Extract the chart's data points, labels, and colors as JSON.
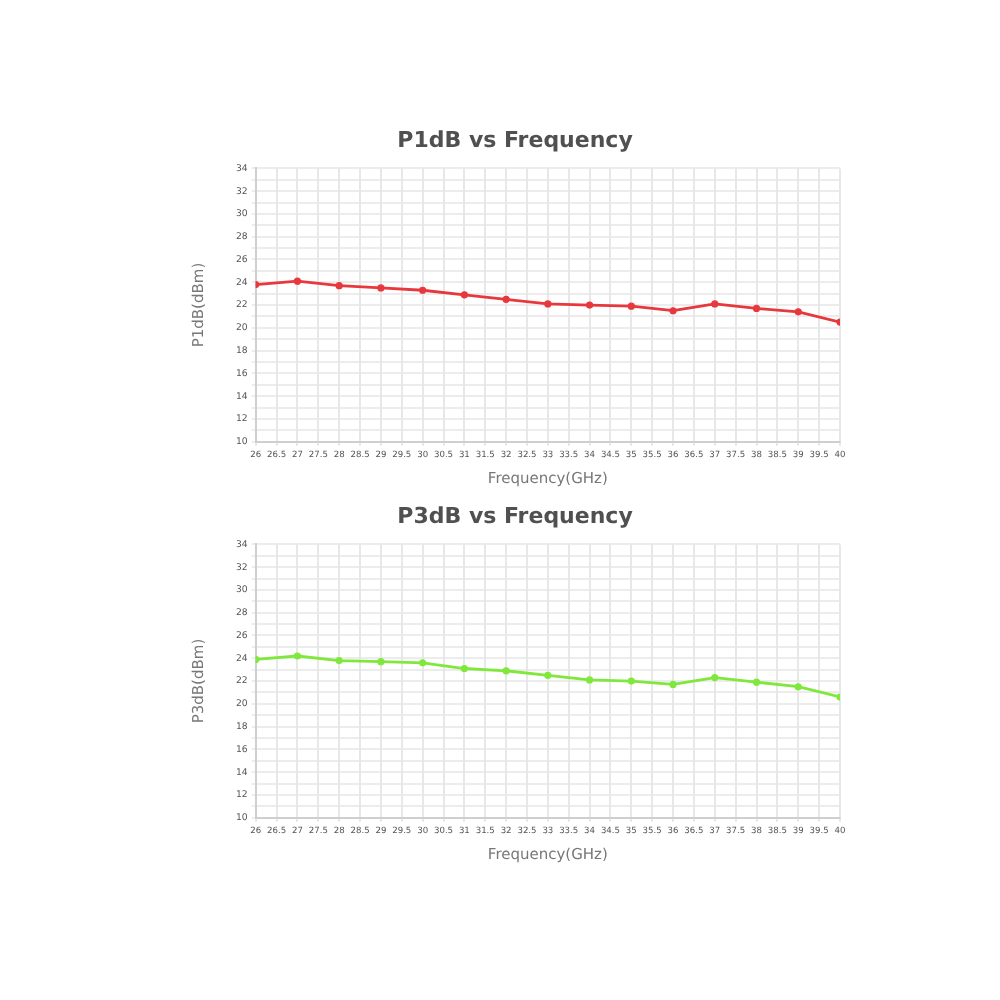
{
  "chart_data": [
    {
      "type": "line",
      "title": "P1dB vs Frequency",
      "xlabel": "Frequency(GHz)",
      "ylabel": "P1dB(dBm)",
      "x": [
        26,
        27,
        28,
        29,
        30,
        31,
        32,
        33,
        34,
        35,
        36,
        37,
        38,
        39,
        40
      ],
      "series": [
        {
          "color": "#e8383d",
          "values": [
            23.8,
            24.1,
            23.7,
            23.5,
            23.3,
            22.9,
            22.5,
            22.1,
            22.0,
            21.9,
            21.5,
            22.1,
            21.7,
            21.4,
            20.5
          ]
        }
      ],
      "xlim": [
        26,
        40
      ],
      "xticks": [
        26,
        26.5,
        27,
        27.5,
        28,
        28.5,
        29,
        29.5,
        30,
        30.5,
        31,
        31.5,
        32,
        32.5,
        33,
        33.5,
        34,
        34.5,
        35,
        35.5,
        36,
        36.5,
        37,
        37.5,
        38,
        38.5,
        39,
        39.5,
        40
      ],
      "ylim": [
        10,
        34
      ],
      "yticks": [
        10,
        {
          "value": 11,
          "label": null
        },
        12,
        {
          "value": 13,
          "label": null
        },
        14,
        {
          "value": 15,
          "label": null
        },
        16,
        {
          "value": 17,
          "label": null
        },
        18,
        {
          "value": 19,
          "label": null
        },
        20,
        {
          "value": 21,
          "label": null
        },
        22,
        {
          "value": 23,
          "label": null
        },
        24,
        {
          "value": 25,
          "label": null
        },
        26,
        {
          "value": 27,
          "label": null
        },
        28,
        {
          "value": 29,
          "label": null
        },
        30,
        {
          "value": 31,
          "label": null
        },
        32,
        {
          "value": 33,
          "label": null
        },
        34
      ],
      "grid": true,
      "marker": "circle"
    },
    {
      "type": "line",
      "title": "P3dB vs Frequency",
      "xlabel": "Frequency(GHz)",
      "ylabel": "P3dB(dBm)",
      "x": [
        26,
        27,
        28,
        29,
        30,
        31,
        32,
        33,
        34,
        35,
        36,
        37,
        38,
        39,
        40
      ],
      "series": [
        {
          "color": "#80e83c",
          "values": [
            23.9,
            24.2,
            23.8,
            23.7,
            23.6,
            23.1,
            22.9,
            22.5,
            22.1,
            22.0,
            21.7,
            22.3,
            21.9,
            21.5,
            20.6
          ]
        }
      ],
      "xlim": [
        26,
        40
      ],
      "xticks": [
        26,
        26.5,
        27,
        27.5,
        28,
        28.5,
        29,
        29.5,
        30,
        30.5,
        31,
        31.5,
        32,
        32.5,
        33,
        33.5,
        34,
        34.5,
        35,
        35.5,
        36,
        36.5,
        37,
        37.5,
        38,
        38.5,
        39,
        39.5,
        40
      ],
      "ylim": [
        10,
        34
      ],
      "yticks": [
        10,
        {
          "value": 11,
          "label": null
        },
        12,
        {
          "value": 13,
          "label": null
        },
        14,
        {
          "value": 15,
          "label": null
        },
        16,
        {
          "value": 17,
          "label": null
        },
        18,
        {
          "value": 19,
          "label": null
        },
        20,
        {
          "value": 21,
          "label": null
        },
        22,
        {
          "value": 23,
          "label": null
        },
        24,
        {
          "value": 25,
          "label": null
        },
        26,
        {
          "value": 27,
          "label": null
        },
        28,
        {
          "value": 29,
          "label": null
        },
        30,
        {
          "value": 31,
          "label": null
        },
        32,
        {
          "value": 33,
          "label": null
        },
        34
      ],
      "grid": true,
      "marker": "circle"
    }
  ]
}
